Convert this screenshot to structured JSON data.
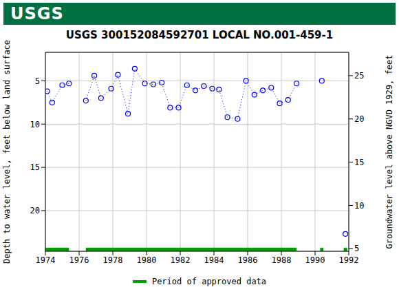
{
  "header": {
    "logo": "USGS"
  },
  "chart_data": {
    "type": "line",
    "title": "USGS 300152084592701 LOCAL NO.001-459-1",
    "x_label": null,
    "y_label": "Depth to water level, feet below land surface",
    "y2_label": "Groundwater level above NGVD 1929, feet",
    "x": [
      1974.1,
      1974.4,
      1975.0,
      1975.4,
      1975.9,
      1976.4,
      1976.9,
      1977.3,
      1977.9,
      1978.3,
      1978.9,
      1979.3,
      1979.9,
      1980.4,
      1980.9,
      1981.4,
      1981.9,
      1982.4,
      1982.9,
      1983.4,
      1983.9,
      1984.3,
      1984.8,
      1985.4,
      1985.9,
      1986.4,
      1986.9,
      1987.4,
      1987.9,
      1988.4,
      1988.9,
      1989.6,
      1990.4,
      1991.1,
      1991.8
    ],
    "series": [
      {
        "name": "Depth to water level",
        "color": "#0000ff",
        "marker": "open_circle",
        "line_style": "dotted",
        "values": [
          6.2,
          7.5,
          5.5,
          5.3,
          null,
          7.3,
          4.4,
          7.0,
          5.9,
          4.3,
          8.8,
          3.6,
          5.3,
          5.4,
          5.2,
          8.1,
          8.1,
          5.5,
          6.1,
          5.6,
          5.9,
          6.0,
          9.2,
          9.4,
          5.0,
          6.6,
          6.1,
          5.8,
          7.6,
          7.2,
          5.3,
          null,
          5.0,
          null,
          22.7
        ]
      }
    ],
    "xlim": [
      1974,
      1992
    ],
    "xticks": [
      1974,
      1976,
      1978,
      1980,
      1982,
      1984,
      1986,
      1988,
      1990,
      1992
    ],
    "ylim": [
      1.7,
      24.7
    ],
    "yticks": [
      5,
      10,
      15,
      20
    ],
    "y2lim": [
      4.7,
      27.7
    ],
    "y2ticks": [
      5,
      10,
      15,
      20,
      25
    ],
    "grid": true,
    "approved_periods": {
      "name": "Period of approved data",
      "color": "#00a000",
      "ranges": [
        [
          1974.0,
          1975.4
        ],
        [
          1976.4,
          1988.9
        ],
        [
          1990.3,
          1990.5
        ],
        [
          1991.7,
          1991.9
        ]
      ]
    }
  }
}
